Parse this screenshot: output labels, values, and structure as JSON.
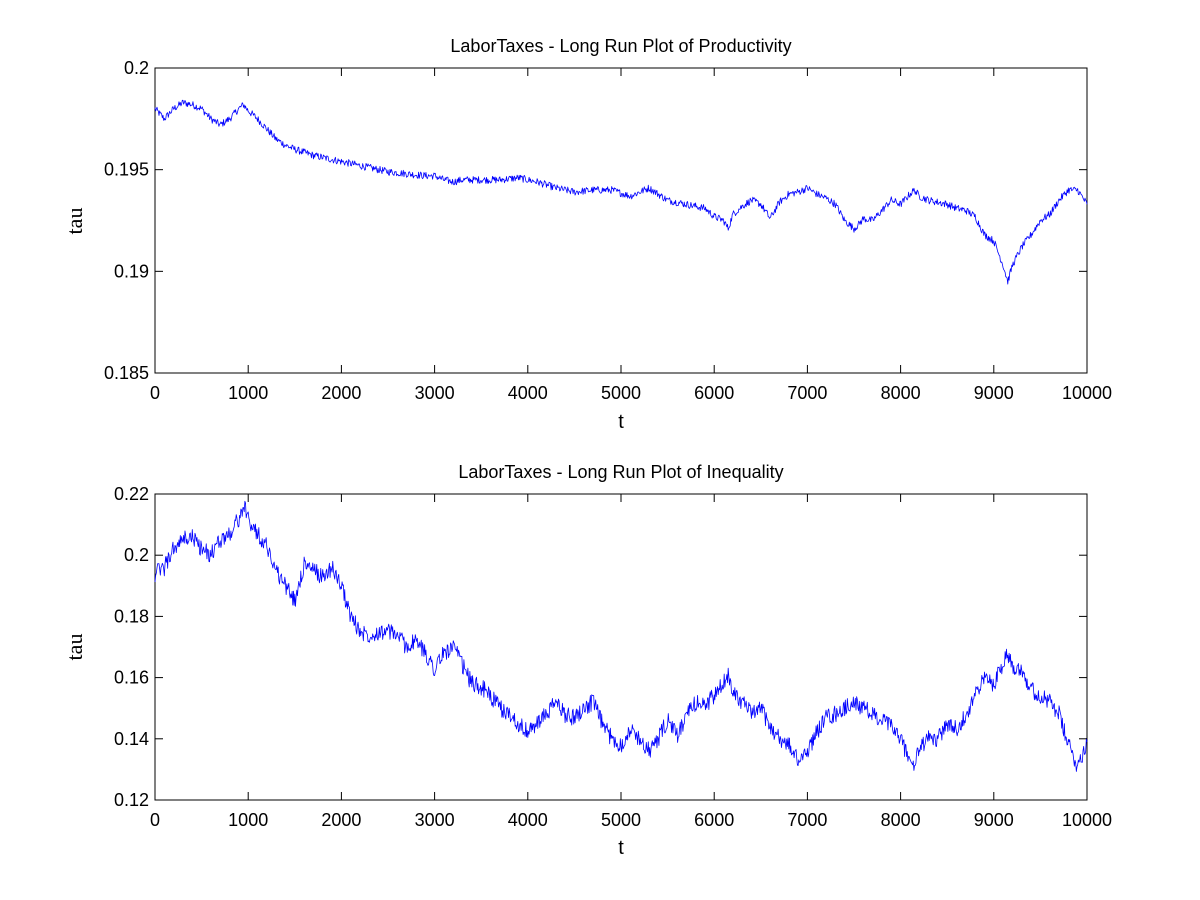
{
  "chart_data": [
    {
      "type": "line",
      "title": "LaborTaxes - Long Run Plot of Productivity",
      "xlabel": "t",
      "ylabel": "tau",
      "xlim": [
        0,
        10000
      ],
      "ylim": [
        0.185,
        0.2
      ],
      "xticks": [
        0,
        1000,
        2000,
        3000,
        4000,
        5000,
        6000,
        7000,
        8000,
        9000,
        10000
      ],
      "yticks": [
        0.185,
        0.19,
        0.195,
        0.2
      ],
      "xtick_labels": [
        "0",
        "1000",
        "2000",
        "3000",
        "4000",
        "5000",
        "6000",
        "7000",
        "8000",
        "9000",
        "10000"
      ],
      "ytick_labels": [
        "0.185",
        "0.19",
        "0.195",
        "0.2"
      ],
      "grid": false,
      "series": [
        {
          "color": "#0000ff",
          "x": [
            0,
            100,
            200,
            300,
            400,
            500,
            600,
            700,
            800,
            900,
            950,
            1000,
            1100,
            1200,
            1300,
            1400,
            1500,
            1700,
            1900,
            2100,
            2300,
            2500,
            2700,
            2900,
            3000,
            3100,
            3200,
            3300,
            3500,
            3700,
            3900,
            4100,
            4300,
            4500,
            4700,
            4900,
            5100,
            5300,
            5500,
            5700,
            5900,
            6000,
            6100,
            6150,
            6200,
            6300,
            6400,
            6500,
            6600,
            6700,
            6800,
            6900,
            7000,
            7100,
            7200,
            7300,
            7400,
            7500,
            7550,
            7600,
            7700,
            7800,
            7900,
            8000,
            8100,
            8150,
            8200,
            8300,
            8400,
            8500,
            8600,
            8700,
            8800,
            8900,
            9000,
            9100,
            9150,
            9200,
            9300,
            9400,
            9500,
            9600,
            9700,
            9800,
            9900,
            10000
          ],
          "values": [
            0.198,
            0.1975,
            0.198,
            0.1983,
            0.1982,
            0.198,
            0.1975,
            0.1972,
            0.1975,
            0.198,
            0.1982,
            0.1979,
            0.1975,
            0.197,
            0.1965,
            0.1962,
            0.196,
            0.1957,
            0.1955,
            0.1953,
            0.1951,
            0.1949,
            0.1948,
            0.1947,
            0.1947,
            0.1945,
            0.1944,
            0.1945,
            0.1945,
            0.1945,
            0.1946,
            0.1944,
            0.1941,
            0.1939,
            0.194,
            0.194,
            0.1937,
            0.1941,
            0.1935,
            0.1933,
            0.1931,
            0.1927,
            0.1925,
            0.1921,
            0.1928,
            0.1932,
            0.1935,
            0.1933,
            0.1926,
            0.1934,
            0.1938,
            0.1939,
            0.1941,
            0.1938,
            0.1936,
            0.1933,
            0.1925,
            0.1921,
            0.1923,
            0.1926,
            0.1925,
            0.193,
            0.1935,
            0.1933,
            0.1938,
            0.194,
            0.1937,
            0.1935,
            0.1934,
            0.1933,
            0.1931,
            0.193,
            0.1927,
            0.1918,
            0.1915,
            0.1903,
            0.1895,
            0.1903,
            0.1912,
            0.1918,
            0.1925,
            0.1928,
            0.1935,
            0.194,
            0.194,
            0.1933
          ]
        }
      ]
    },
    {
      "type": "line",
      "title": "LaborTaxes - Long Run Plot of Inequality",
      "xlabel": "t",
      "ylabel": "tau",
      "xlim": [
        0,
        10000
      ],
      "ylim": [
        0.12,
        0.22
      ],
      "xticks": [
        0,
        1000,
        2000,
        3000,
        4000,
        5000,
        6000,
        7000,
        8000,
        9000,
        10000
      ],
      "yticks": [
        0.12,
        0.14,
        0.16,
        0.18,
        0.2,
        0.22
      ],
      "xtick_labels": [
        "0",
        "1000",
        "2000",
        "3000",
        "4000",
        "5000",
        "6000",
        "7000",
        "8000",
        "9000",
        "10000"
      ],
      "ytick_labels": [
        "0.12",
        "0.14",
        "0.16",
        "0.18",
        "0.2",
        "0.22"
      ],
      "grid": false,
      "series": [
        {
          "color": "#0000ff",
          "x": [
            0,
            100,
            200,
            300,
            400,
            500,
            600,
            700,
            800,
            900,
            950,
            1000,
            1100,
            1200,
            1300,
            1400,
            1500,
            1600,
            1700,
            1800,
            1900,
            2000,
            2100,
            2200,
            2300,
            2400,
            2500,
            2600,
            2700,
            2800,
            2900,
            3000,
            3100,
            3200,
            3300,
            3400,
            3500,
            3600,
            3700,
            3800,
            3900,
            4000,
            4100,
            4200,
            4300,
            4400,
            4500,
            4600,
            4700,
            4800,
            4900,
            5000,
            5100,
            5200,
            5300,
            5400,
            5500,
            5600,
            5700,
            5800,
            5900,
            6000,
            6100,
            6150,
            6200,
            6300,
            6400,
            6500,
            6600,
            6700,
            6800,
            6900,
            7000,
            7100,
            7200,
            7300,
            7400,
            7500,
            7600,
            7700,
            7800,
            7900,
            8000,
            8100,
            8150,
            8200,
            8300,
            8400,
            8500,
            8600,
            8700,
            8800,
            8900,
            9000,
            9100,
            9150,
            9200,
            9300,
            9400,
            9500,
            9600,
            9700,
            9800,
            9900,
            10000
          ],
          "values": [
            0.194,
            0.196,
            0.202,
            0.205,
            0.206,
            0.202,
            0.2,
            0.205,
            0.207,
            0.212,
            0.216,
            0.212,
            0.207,
            0.203,
            0.195,
            0.19,
            0.185,
            0.197,
            0.195,
            0.193,
            0.196,
            0.19,
            0.18,
            0.175,
            0.174,
            0.175,
            0.175,
            0.174,
            0.17,
            0.172,
            0.168,
            0.163,
            0.168,
            0.17,
            0.164,
            0.158,
            0.157,
            0.154,
            0.15,
            0.148,
            0.145,
            0.142,
            0.145,
            0.148,
            0.152,
            0.148,
            0.147,
            0.15,
            0.152,
            0.145,
            0.14,
            0.138,
            0.143,
            0.14,
            0.136,
            0.14,
            0.146,
            0.141,
            0.147,
            0.152,
            0.151,
            0.154,
            0.158,
            0.161,
            0.156,
            0.152,
            0.148,
            0.15,
            0.144,
            0.14,
            0.138,
            0.133,
            0.136,
            0.142,
            0.147,
            0.148,
            0.15,
            0.152,
            0.15,
            0.148,
            0.146,
            0.144,
            0.14,
            0.133,
            0.131,
            0.137,
            0.14,
            0.14,
            0.145,
            0.143,
            0.148,
            0.154,
            0.16,
            0.158,
            0.165,
            0.168,
            0.164,
            0.163,
            0.156,
            0.154,
            0.152,
            0.148,
            0.138,
            0.131,
            0.139
          ]
        }
      ]
    }
  ]
}
